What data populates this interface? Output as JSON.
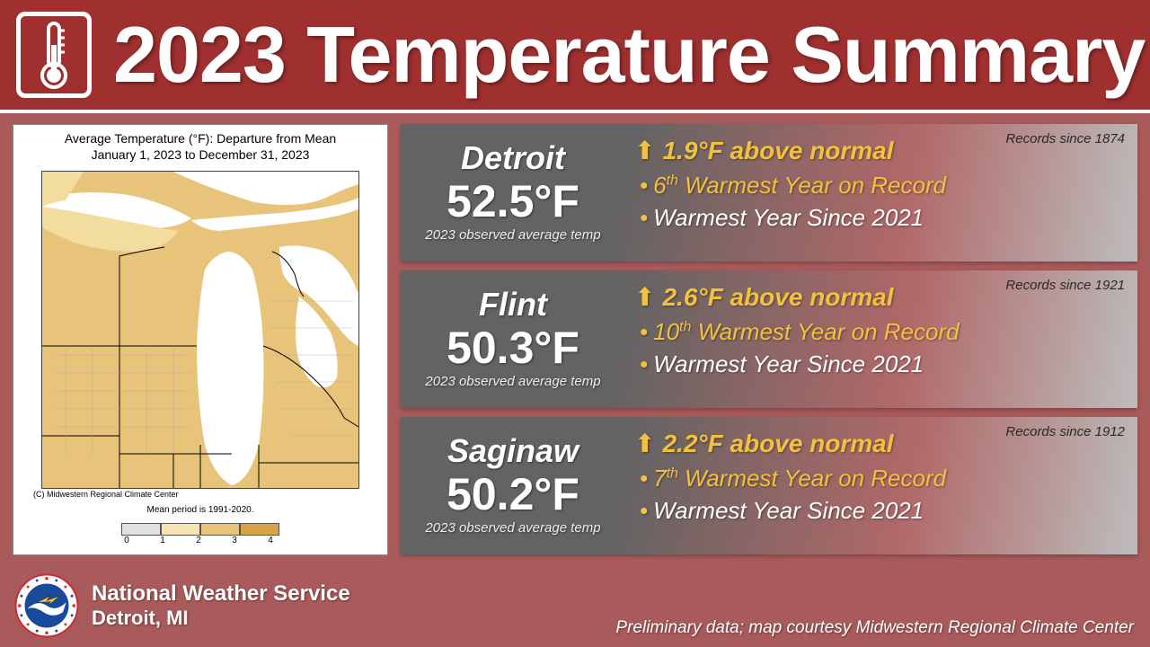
{
  "header": {
    "title": "2023 Temperature Summary",
    "bg_color": "#a03030",
    "border_color": "#ffffff"
  },
  "page_bg": "#a95a5a",
  "map": {
    "title_line1": "Average Temperature (°F): Departure from Mean",
    "title_line2": "January 1, 2023 to December 31, 2023",
    "mean_period": "Mean period is 1991-2020.",
    "copyright": "(C) Midwestern Regional Climate Center",
    "colorbar": {
      "colors": [
        "#e0e0e0",
        "#f7e4b5",
        "#e8c47a",
        "#d9a347"
      ],
      "ticks": [
        "0",
        "1",
        "2",
        "3",
        "4"
      ]
    },
    "land_color": "#e8c47a",
    "land_light": "#f3dca0",
    "water_color": "#ffffff",
    "border_color": "#000000"
  },
  "cities": [
    {
      "name": "Detroit",
      "temp": "52.5°F",
      "caption": "2023 observed average temp",
      "anomaly": "1.9°F above normal",
      "rank_ord": "6",
      "rank_suffix": "th",
      "rank_rest": " Warmest Year on Record",
      "since": "Warmest Year Since 2021",
      "records": "Records since 1874"
    },
    {
      "name": "Flint",
      "temp": "50.3°F",
      "caption": "2023 observed average temp",
      "anomaly": "2.6°F above normal",
      "rank_ord": "10",
      "rank_suffix": "th",
      "rank_rest": " Warmest Year on Record",
      "since": "Warmest Year Since 2021",
      "records": "Records since 1921"
    },
    {
      "name": "Saginaw",
      "temp": "50.2°F",
      "caption": "2023 observed average temp",
      "anomaly": "2.2°F above normal",
      "rank_ord": "7",
      "rank_suffix": "th",
      "rank_rest": " Warmest Year on Record",
      "since": "Warmest Year Since 2021",
      "records": "Records since 1912"
    }
  ],
  "accent_color": "#f2c23e",
  "footer": {
    "org": "National Weather Service",
    "loc": "Detroit, MI",
    "disclaimer": "Preliminary data; map courtesy Midwestern Regional Climate Center"
  }
}
